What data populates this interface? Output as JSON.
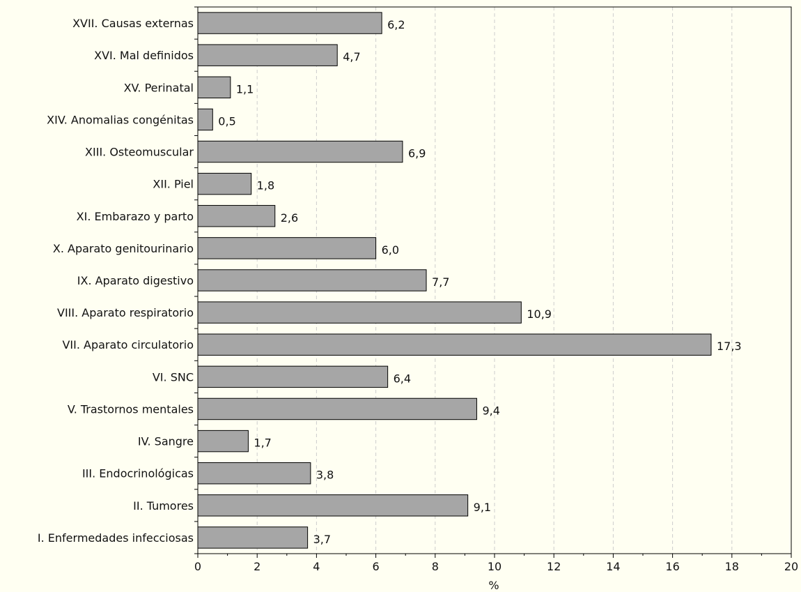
{
  "chart_data": {
    "type": "bar",
    "orientation": "horizontal",
    "categories": [
      "XVII. Causas externas",
      "XVI. Mal definidos",
      "XV. Perinatal",
      "XIV. Anomalias congénitas",
      "XIII. Osteomuscular",
      "XII. Piel",
      "XI. Embarazo y parto",
      "X. Aparato genitourinario",
      "IX. Aparato digestivo",
      "VIII. Aparato respiratorio",
      "VII. Aparato circulatorio",
      "VI. SNC",
      "V. Trastornos mentales",
      "IV. Sangre",
      "III. Endocrinológicas",
      "II. Tumores",
      "I. Enfermedades infecciosas"
    ],
    "values": [
      6.2,
      4.7,
      1.1,
      0.5,
      6.9,
      1.8,
      2.6,
      6.0,
      7.7,
      10.9,
      17.3,
      6.4,
      9.4,
      1.7,
      3.8,
      9.1,
      3.7
    ],
    "value_labels": [
      "6,2",
      "4,7",
      "1,1",
      "0,5",
      "6,9",
      "1,8",
      "2,6",
      "6,0",
      "7,7",
      "10,9",
      "17,3",
      "6,4",
      "9,4",
      "1,7",
      "3,8",
      "9,1",
      "3,7"
    ],
    "xlabel": "%",
    "xlim": [
      0,
      20
    ],
    "xticks": [
      0,
      2,
      4,
      6,
      8,
      10,
      12,
      14,
      16,
      18,
      20
    ],
    "grid": "vertical-dashed",
    "colors": {
      "bar": "#a6a6a6",
      "background": "#fffff2"
    }
  }
}
